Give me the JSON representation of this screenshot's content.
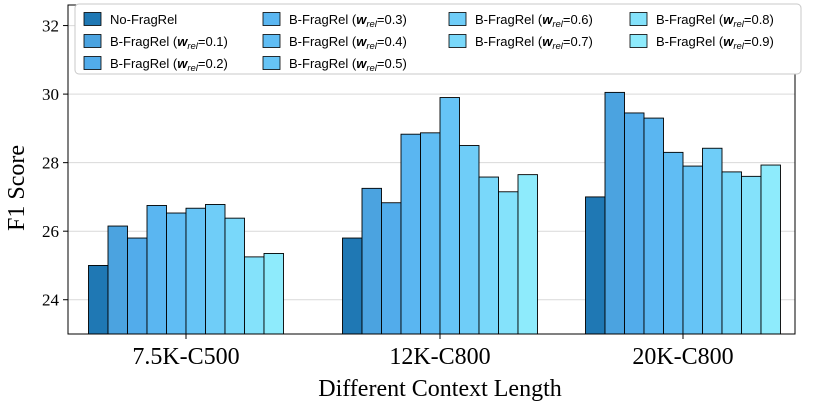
{
  "chart_data": {
    "type": "bar",
    "xlabel": "Different Context Length",
    "ylabel": "F1 Score",
    "ylim": [
      23,
      32.6
    ],
    "yticks": [
      24,
      26,
      28,
      30,
      32
    ],
    "grid": true,
    "legend_position": "top",
    "categories": [
      "7.5K-C500",
      "12K-C800",
      "20K-C800"
    ],
    "series": [
      {
        "name": "No-FragRel",
        "legend_prefix": "No-FragRel",
        "legend_sub": "",
        "legend_suffix": "",
        "color": "#1f78b4",
        "values": [
          25.0,
          25.8,
          27.0
        ]
      },
      {
        "name": "B-FragRel (w_rel=0.1)",
        "legend_prefix": "B-FragRel (",
        "legend_sub": "rel",
        "legend_suffix": "=0.1)",
        "color": "#4ba3e0",
        "values": [
          26.15,
          27.25,
          30.05
        ]
      },
      {
        "name": "B-FragRel (w_rel=0.2)",
        "legend_prefix": "B-FragRel (",
        "legend_sub": "rel",
        "legend_suffix": "=0.2)",
        "color": "#52aceb",
        "values": [
          25.8,
          26.83,
          29.45
        ]
      },
      {
        "name": "B-FragRel (w_rel=0.3)",
        "legend_prefix": "B-FragRel (",
        "legend_sub": "rel",
        "legend_suffix": "=0.3)",
        "color": "#5ab6f1",
        "values": [
          26.75,
          28.83,
          29.3
        ]
      },
      {
        "name": "B-FragRel (w_rel=0.4)",
        "legend_prefix": "B-FragRel (",
        "legend_sub": "rel",
        "legend_suffix": "=0.4)",
        "color": "#60bdf4",
        "values": [
          26.53,
          28.87,
          28.3
        ]
      },
      {
        "name": "B-FragRel (w_rel=0.5)",
        "legend_prefix": "B-FragRel (",
        "legend_sub": "rel",
        "legend_suffix": "=0.5)",
        "color": "#66c4f6",
        "values": [
          26.67,
          29.9,
          27.9
        ]
      },
      {
        "name": "B-FragRel (w_rel=0.6)",
        "legend_prefix": "B-FragRel (",
        "legend_sub": "rel",
        "legend_suffix": "=0.6)",
        "color": "#6fcdf8",
        "values": [
          26.78,
          28.5,
          28.42
        ]
      },
      {
        "name": "B-FragRel (w_rel=0.7)",
        "legend_prefix": "B-FragRel (",
        "legend_sub": "rel",
        "legend_suffix": "=0.7)",
        "color": "#79d8fa",
        "values": [
          26.38,
          27.58,
          27.73
        ]
      },
      {
        "name": "B-FragRel (w_rel=0.8)",
        "legend_prefix": "B-FragRel (",
        "legend_sub": "rel",
        "legend_suffix": "=0.8)",
        "color": "#84e2fb",
        "values": [
          25.25,
          27.15,
          27.6
        ]
      },
      {
        "name": "B-FragRel (w_rel=0.9)",
        "legend_prefix": "B-FragRel (",
        "legend_sub": "rel",
        "legend_suffix": "=0.9)",
        "color": "#8eebfc",
        "values": [
          25.35,
          27.65,
          27.93
        ]
      }
    ]
  }
}
